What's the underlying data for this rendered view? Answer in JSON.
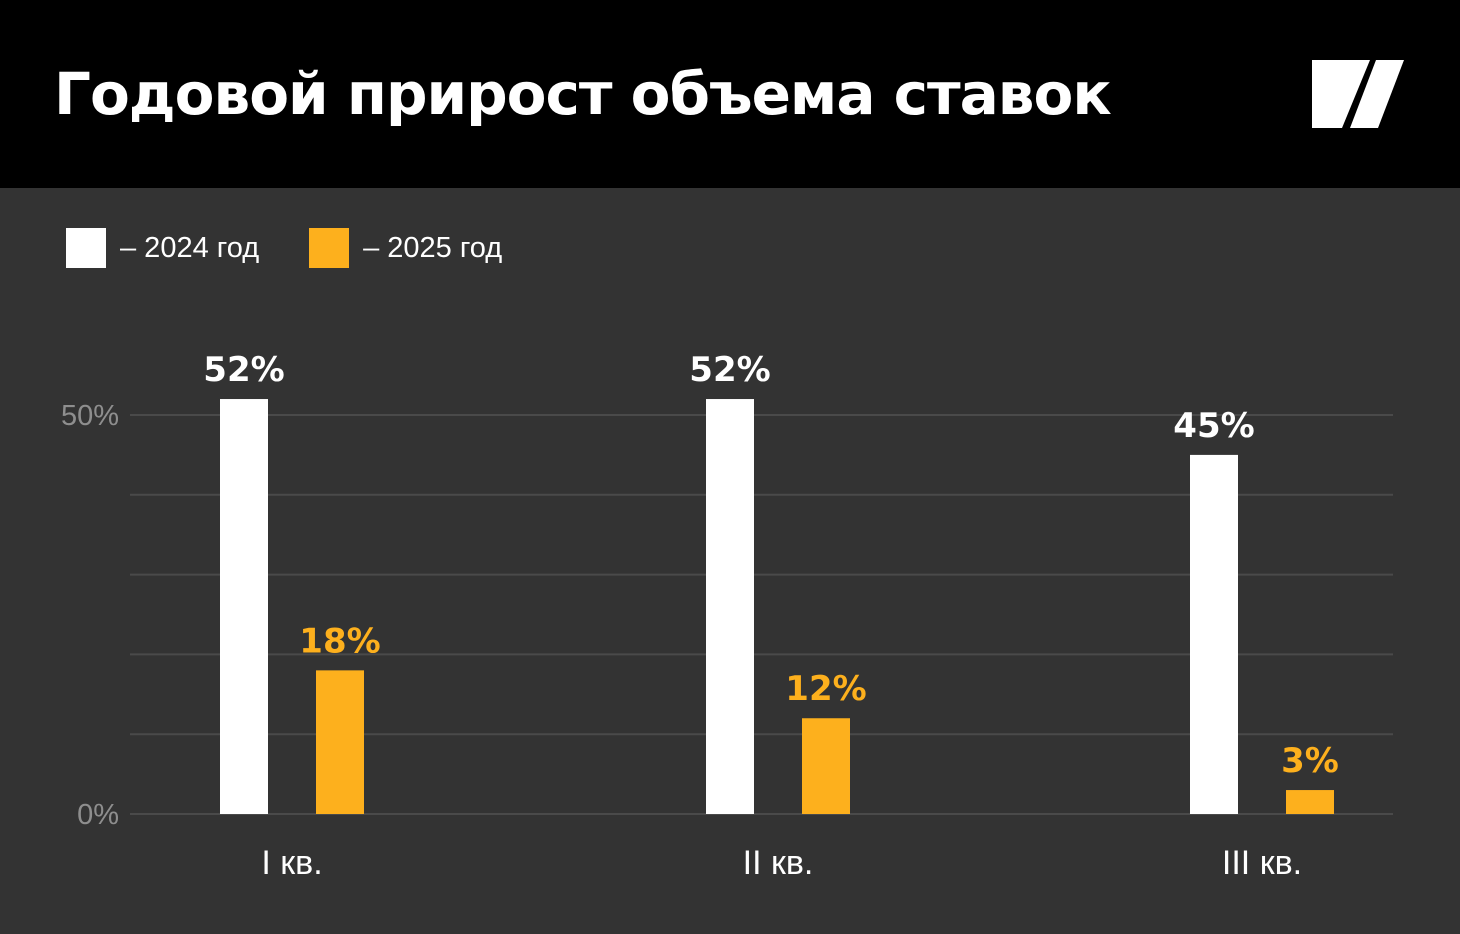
{
  "header": {
    "title": "Годовой прирост объема ставок"
  },
  "icons": {
    "logo": "brand-logo-icon"
  },
  "colors": {
    "header_bg": "#000000",
    "chart_bg": "#333333",
    "series_2024": "#ffffff",
    "series_2025": "#fdb01d",
    "gridline": "#4a4a4a",
    "tick_text": "#8e8e8e"
  },
  "chart_data": {
    "type": "bar",
    "title": "Годовой прирост объема ставок",
    "categories": [
      "I кв.",
      "II кв.",
      "III кв."
    ],
    "series": [
      {
        "name": "– 2024 год",
        "values": [
          52,
          52,
          45
        ],
        "labels": [
          "52%",
          "52%",
          "45%"
        ]
      },
      {
        "name": "– 2025 год",
        "values": [
          18,
          12,
          3
        ],
        "labels": [
          "18%",
          "12%",
          "3%"
        ]
      }
    ],
    "ylim": [
      0,
      50
    ],
    "yticks": [
      {
        "value": 0,
        "label": "0%"
      },
      {
        "value": 50,
        "label": "50%"
      }
    ],
    "gridlines": [
      0,
      10,
      20,
      30,
      40,
      50
    ],
    "grid": true,
    "legend_position": "top-left",
    "xlabel": "",
    "ylabel": ""
  }
}
